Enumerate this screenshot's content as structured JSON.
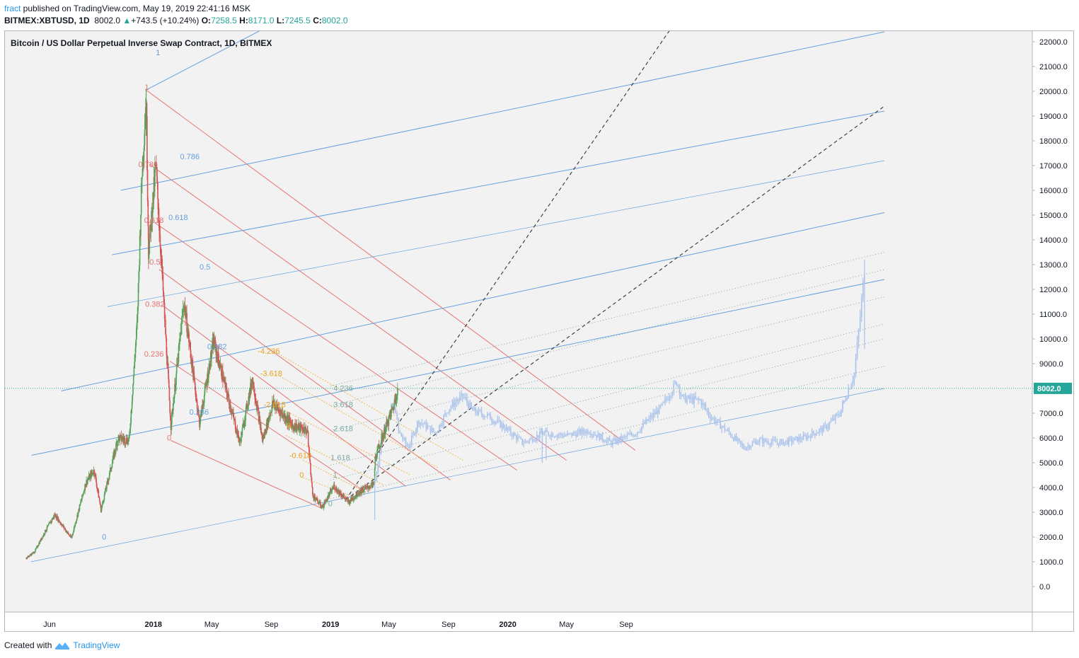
{
  "header": {
    "author": "fract",
    "published": " published on TradingView.com, May 19, 2019 22:41:16 MSK",
    "symbol": "BITMEX:XBTUSD, 1D",
    "last": "8002.0",
    "change_arrow": "▲",
    "change": "+743.5 (+10.24%)",
    "o_label": "O:",
    "o_val": "7258.5",
    "h_label": "H:",
    "h_val": "8171.0",
    "l_label": "L:",
    "l_val": "7245.5",
    "c_label": "C:",
    "c_val": "8002.0"
  },
  "footer": {
    "created_with": "Created with",
    "brand": "TradingView",
    "logo_icon": "tradingview-logo-icon"
  },
  "colors": {
    "pane_bg": "#f2f2f2",
    "up": "#56a35a",
    "down": "#d45555",
    "projection": "#a9c2ec",
    "fan_red": "#e57373",
    "fan_blue": "#64a0de",
    "fan_orange": "#f5b74f",
    "fan_teal": "#7aa9a3",
    "price_line": "#26a69a"
  },
  "chart_data": {
    "type": "candlestick",
    "title": "Bitcoin / US Dollar Perpetual Inverse Swap Contract, 1D, BITMEX",
    "ylim": [
      -1000,
      23300
    ],
    "y_ticks": [
      "0.0",
      "1000.0",
      "2000.0",
      "3000.0",
      "4000.0",
      "5000.0",
      "6000.0",
      "7000.0",
      "8000.0",
      "9000.0",
      "10000.0",
      "11000.0",
      "12000.0",
      "13000.0",
      "14000.0",
      "15000.0",
      "16000.0",
      "17000.0",
      "18000.0",
      "19000.0",
      "20000.0",
      "21000.0",
      "22000.0"
    ],
    "x_ticks": [
      {
        "label": "Jun",
        "x": "2017-06-01",
        "bold": false
      },
      {
        "label": "2018",
        "x": "2018-01-01",
        "bold": true
      },
      {
        "label": "May",
        "x": "2018-05-01",
        "bold": false
      },
      {
        "label": "Sep",
        "x": "2018-09-01",
        "bold": false
      },
      {
        "label": "2019",
        "x": "2019-01-01",
        "bold": true
      },
      {
        "label": "May",
        "x": "2019-05-01",
        "bold": false
      },
      {
        "label": "Sep",
        "x": "2019-09-01",
        "bold": false
      },
      {
        "label": "2020",
        "x": "2020-01-01",
        "bold": true
      },
      {
        "label": "May",
        "x": "2020-05-01",
        "bold": false
      },
      {
        "label": "Sep",
        "x": "2020-09-01",
        "bold": false
      }
    ],
    "last_price": "8002.0",
    "price_path": [
      [
        "2017-04-14",
        1150
      ],
      [
        "2017-05-01",
        1400
      ],
      [
        "2017-05-25",
        2300
      ],
      [
        "2017-06-12",
        2900
      ],
      [
        "2017-07-16",
        1950
      ],
      [
        "2017-08-15",
        4200
      ],
      [
        "2017-09-01",
        4700
      ],
      [
        "2017-09-15",
        3100
      ],
      [
        "2017-10-20",
        6000
      ],
      [
        "2017-11-12",
        5900
      ],
      [
        "2017-11-29",
        10800
      ],
      [
        "2017-12-08",
        16500
      ],
      [
        "2017-12-17",
        19800
      ],
      [
        "2017-12-22",
        13500
      ],
      [
        "2018-01-06",
        17000
      ],
      [
        "2018-02-06",
        6500
      ],
      [
        "2018-03-05",
        11500
      ],
      [
        "2018-04-06",
        6600
      ],
      [
        "2018-05-05",
        9900
      ],
      [
        "2018-06-28",
        5800
      ],
      [
        "2018-07-24",
        8400
      ],
      [
        "2018-08-14",
        5900
      ],
      [
        "2018-09-04",
        7400
      ],
      [
        "2018-10-15",
        6500
      ],
      [
        "2018-11-14",
        6300
      ],
      [
        "2018-11-25",
        3700
      ],
      [
        "2018-12-15",
        3200
      ],
      [
        "2019-01-08",
        4050
      ],
      [
        "2019-02-07",
        3400
      ],
      [
        "2019-03-01",
        3820
      ],
      [
        "2019-04-01",
        4150
      ],
      [
        "2019-04-03",
        5200
      ],
      [
        "2019-05-11",
        7300
      ],
      [
        "2019-05-19",
        8002
      ]
    ],
    "projection_path": [
      [
        "2019-04-03",
        4300
      ],
      [
        "2019-04-20",
        6400
      ],
      [
        "2019-05-13",
        7500
      ],
      [
        "2019-05-20",
        6300
      ],
      [
        "2019-06-10",
        5600
      ],
      [
        "2019-07-01",
        6700
      ],
      [
        "2019-08-05",
        6200
      ],
      [
        "2019-09-01",
        7200
      ],
      [
        "2019-10-01",
        7700
      ],
      [
        "2019-10-20",
        7100
      ],
      [
        "2019-11-20",
        6900
      ],
      [
        "2019-12-20",
        6500
      ],
      [
        "2020-02-01",
        5800
      ],
      [
        "2020-03-15",
        6200
      ],
      [
        "2020-05-01",
        6100
      ],
      [
        "2020-06-15",
        6300
      ],
      [
        "2020-08-01",
        5800
      ],
      [
        "2020-09-20",
        6200
      ],
      [
        "2020-11-15",
        7300
      ],
      [
        "2020-12-15",
        8300
      ],
      [
        "2020-12-25",
        7600
      ],
      [
        "2021-02-01",
        7500
      ],
      [
        "2021-02-20",
        6900
      ],
      [
        "2021-04-01",
        6200
      ],
      [
        "2021-05-01",
        5600
      ],
      [
        "2021-06-01",
        5900
      ],
      [
        "2021-07-15",
        5800
      ],
      [
        "2021-09-01",
        6000
      ],
      [
        "2021-10-15",
        6400
      ],
      [
        "2021-11-15",
        7000
      ],
      [
        "2021-12-15",
        8600
      ],
      [
        "2021-12-25",
        10500
      ],
      [
        "2022-01-05",
        12800
      ]
    ],
    "red_fan": {
      "lines": [
        {
          "p1": [
            "2017-12-17",
            20050
          ],
          "p2": [
            "2020-09-20",
            5500
          ]
        },
        {
          "p1": [
            "2017-12-24",
            17050
          ],
          "p2": [
            "2020-05-01",
            5100
          ]
        },
        {
          "p1": [
            "2018-01-03",
            14700
          ],
          "p2": [
            "2020-01-20",
            4700
          ]
        },
        {
          "p1": [
            "2018-01-13",
            12800
          ],
          "p2": [
            "2019-09-05",
            4300
          ]
        },
        {
          "p1": [
            "2018-01-20",
            11350
          ],
          "p2": [
            "2019-06-05",
            4050
          ]
        },
        {
          "p1": [
            "2018-02-04",
            9100
          ],
          "p2": [
            "2019-03-15",
            3800
          ]
        },
        {
          "p1": [
            "2018-02-06",
            5900
          ],
          "p2": [
            "2018-12-15",
            3150
          ]
        }
      ],
      "labels": [
        {
          "text": "1",
          "at": [
            "2017-12-14",
            20050
          ]
        },
        {
          "text": "0.786",
          "at": [
            "2017-12-01",
            16950
          ]
        },
        {
          "text": "0.618",
          "at": [
            "2017-12-13",
            14680
          ]
        },
        {
          "text": "0.5",
          "at": [
            "2017-12-24",
            13000
          ]
        },
        {
          "text": "0.382",
          "at": [
            "2017-12-15",
            11300
          ]
        },
        {
          "text": "0.236",
          "at": [
            "2017-12-13",
            9280
          ]
        },
        {
          "text": "0",
          "at": [
            "2018-01-29",
            5900
          ]
        }
      ]
    },
    "blue_fan": {
      "lines": [
        {
          "p1": [
            "2017-12-17",
            20050
          ],
          "p2": [
            "2018-11-10",
            23400
          ],
          "width": 1
        },
        {
          "p1": [
            "2017-10-26",
            16000
          ],
          "p2": [
            "2022-02-15",
            22400
          ],
          "width": 1
        },
        {
          "p1": [
            "2017-10-08",
            13400
          ],
          "p2": [
            "2022-02-15",
            19200
          ],
          "width": 1
        },
        {
          "p1": [
            "2017-09-28",
            11300
          ],
          "p2": [
            "2022-02-15",
            17200
          ],
          "width": 0.7
        },
        {
          "p1": [
            "2017-06-25",
            7900
          ],
          "p2": [
            "2022-02-15",
            15100
          ],
          "width": 1
        },
        {
          "p1": [
            "2017-04-25",
            5300
          ],
          "p2": [
            "2022-02-15",
            12400
          ],
          "width": 1
        },
        {
          "p1": [
            "2017-04-24",
            1000
          ],
          "p2": [
            "2022-02-15",
            8000
          ],
          "width": 0.7
        }
      ],
      "labels": [
        {
          "text": "1",
          "at": [
            "2018-01-06",
            21450
          ]
        },
        {
          "text": "0.786",
          "at": [
            "2018-02-25",
            17250
          ]
        },
        {
          "text": "0.618",
          "at": [
            "2018-02-01",
            14800
          ]
        },
        {
          "text": "0.5",
          "at": [
            "2018-04-06",
            12800
          ]
        },
        {
          "text": "0.382",
          "at": [
            "2018-04-22",
            9590
          ]
        },
        {
          "text": "0.236",
          "at": [
            "2018-03-16",
            6950
          ]
        },
        {
          "text": "0",
          "at": [
            "2017-09-17",
            1900
          ]
        }
      ]
    },
    "orange_fan": {
      "lines": [
        {
          "p1": [
            "2018-09-15",
            9400
          ],
          "p2": [
            "2019-10-01",
            5100
          ]
        },
        {
          "p1": [
            "2018-09-18",
            8500
          ],
          "p2": [
            "2019-08-10",
            4800
          ]
        },
        {
          "p1": [
            "2018-09-19",
            7200
          ],
          "p2": [
            "2019-06-15",
            4500
          ]
        },
        {
          "p1": [
            "2018-10-01",
            6100
          ],
          "p2": [
            "2019-04-20",
            4100
          ]
        },
        {
          "p1": [
            "2018-11-05",
            5100
          ],
          "p2": [
            "2019-03-15",
            3800
          ]
        },
        {
          "p1": [
            "2018-11-05",
            4400
          ],
          "p2": [
            "2019-02-20",
            3600
          ]
        }
      ],
      "labels": [
        {
          "text": "-4.236",
          "at": [
            "2018-08-04",
            9400
          ]
        },
        {
          "text": "-3.618",
          "at": [
            "2018-08-09",
            8500
          ]
        },
        {
          "text": "-2.618",
          "at": [
            "2018-08-16",
            7250
          ]
        },
        {
          "text": "-0.618",
          "at": [
            "2018-10-08",
            5180
          ]
        },
        {
          "text": "0",
          "at": [
            "2018-10-29",
            4400
          ]
        },
        {
          "text": "8",
          "at": [
            "2018-10-03",
            6400
          ]
        }
      ]
    },
    "teal_fan": {
      "lines": [
        {
          "p1": [
            "2019-01-01",
            8100
          ],
          "p2": [
            "2022-02-15",
            13500
          ]
        },
        {
          "p1": [
            "2019-01-01",
            7300
          ],
          "p2": [
            "2022-02-15",
            12800
          ]
        },
        {
          "p1": [
            "2019-01-01",
            6300
          ],
          "p2": [
            "2022-02-15",
            11700
          ]
        },
        {
          "p1": [
            "2019-01-01",
            4900
          ],
          "p2": [
            "2022-02-15",
            10600
          ]
        },
        {
          "p1": [
            "2019-01-01",
            4300
          ],
          "p2": [
            "2022-02-15",
            10000
          ]
        },
        {
          "p1": [
            "2019-01-01",
            3550
          ],
          "p2": [
            "2022-02-15",
            8900
          ]
        }
      ],
      "labels": [
        {
          "text": "4.236",
          "at": [
            "2019-01-07",
            7900
          ]
        },
        {
          "text": "3.618",
          "at": [
            "2019-01-07",
            7250
          ]
        },
        {
          "text": "2.618",
          "at": [
            "2019-01-07",
            6270
          ]
        },
        {
          "text": "1.618",
          "at": [
            "2019-01-01",
            5100
          ]
        },
        {
          "text": "1",
          "at": [
            "2019-01-06",
            4400
          ]
        },
        {
          "text": "0",
          "at": [
            "2018-12-27",
            3250
          ]
        }
      ]
    },
    "dashed_lines": [
      {
        "p1": [
          "2019-02-01",
          3500
        ],
        "p2": [
          "2020-12-01",
          22500
        ]
      },
      {
        "p1": [
          "2019-02-01",
          3500
        ],
        "p2": [
          "2022-02-15",
          19400
        ]
      }
    ]
  }
}
